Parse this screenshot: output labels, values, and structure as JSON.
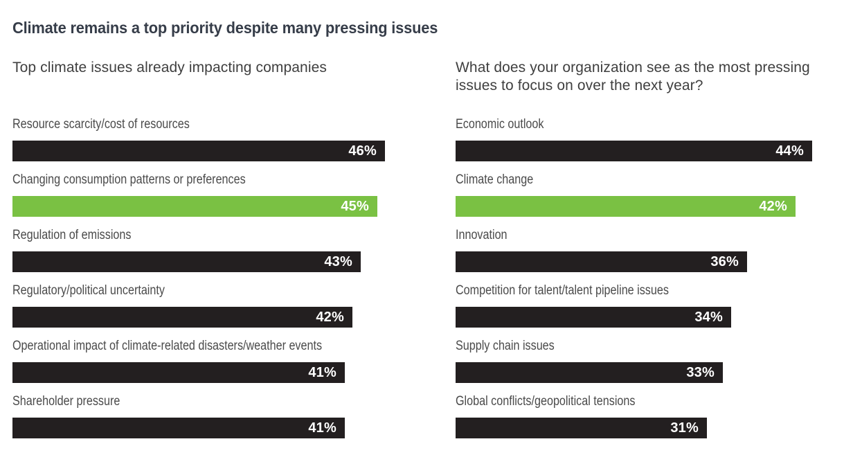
{
  "title": "Climate remains a top priority despite many pressing issues",
  "colors": {
    "title_text": "#363d49",
    "subtitle_text": "#3f3f3f",
    "label_text": "#4a4a4a",
    "bar_default": "#231f20",
    "bar_highlight": "#7ac143",
    "value_text": "#ffffff",
    "background": "#ffffff"
  },
  "chart_data": [
    {
      "type": "bar",
      "orientation": "horizontal",
      "title": "Top climate issues already impacting companies",
      "categories": [
        "Resource scarcity/cost of resources",
        "Changing consumption patterns or preferences",
        "Regulation of emissions",
        "Regulatory/political uncertainty",
        "Operational impact of climate-related disasters/weather events",
        "Shareholder pressure"
      ],
      "values": [
        46,
        45,
        43,
        42,
        41,
        41
      ],
      "value_labels": [
        "46%",
        "45%",
        "43%",
        "42%",
        "41%",
        "41%"
      ],
      "unit": "%",
      "xlim": [
        0,
        46
      ],
      "grid": false,
      "legend": false,
      "highlight_index": 1,
      "highlight_category": "Changing consumption patterns or preferences",
      "bar_color": "#231f20",
      "highlight_color": "#7ac143"
    },
    {
      "type": "bar",
      "orientation": "horizontal",
      "title": "What does your organization see as the most pressing issues to focus on over the next year?",
      "categories": [
        "Economic outlook",
        "Climate change",
        "Innovation",
        "Competition for talent/talent pipeline issues",
        "Supply chain issues",
        "Global conflicts/geopolitical tensions"
      ],
      "values": [
        44,
        42,
        36,
        34,
        33,
        31
      ],
      "value_labels": [
        "44%",
        "42%",
        "36%",
        "34%",
        "33%",
        "31%"
      ],
      "unit": "%",
      "xlim": [
        0,
        46
      ],
      "grid": false,
      "legend": false,
      "highlight_index": 1,
      "highlight_category": "Climate change",
      "bar_color": "#231f20",
      "highlight_color": "#7ac143"
    }
  ]
}
